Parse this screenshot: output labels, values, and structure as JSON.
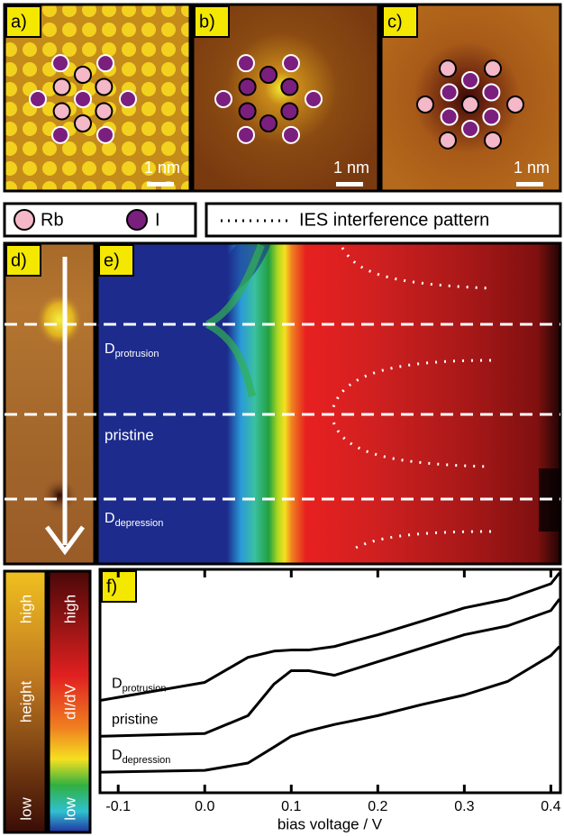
{
  "panels": {
    "a": {
      "label": "a)",
      "scale": "1 nm"
    },
    "b": {
      "label": "b)",
      "scale": "1 nm"
    },
    "c": {
      "label": "c)",
      "scale": "1 nm"
    },
    "d": {
      "label": "d)"
    },
    "e": {
      "label": "e)",
      "labels": [
        {
          "text": "D",
          "sub": "protrusion"
        },
        {
          "text": "pristine"
        },
        {
          "text": "D",
          "sub": "depression"
        }
      ]
    }
  },
  "legend": {
    "rb": "Rb",
    "i": "I",
    "ies": "IES interference pattern"
  },
  "colorbars": {
    "height": {
      "high": "high",
      "title": "height",
      "low": "low"
    },
    "didv": {
      "high": "high",
      "title": "dI/dV",
      "low": "low"
    }
  },
  "chart_data": {
    "type": "line",
    "label": "f)",
    "xlabel": "bias voltage / V",
    "x": [
      -0.12,
      0,
      0.05,
      0.08,
      0.1,
      0.12,
      0.15,
      0.2,
      0.25,
      0.3,
      0.35,
      0.4,
      0.41
    ],
    "xlim": [
      -0.12,
      0.41
    ],
    "xticks": [
      -0.1,
      {
        "value": 0,
        "label": "0.0"
      },
      0.1,
      0.2,
      0.3,
      0.4
    ],
    "ylim": [
      0,
      100
    ],
    "series": [
      {
        "name": "D",
        "subscript": "protrusion",
        "color": "#000000",
        "values": [
          41.3,
          49.4,
          60.7,
          63.5,
          64,
          64,
          65.6,
          70.9,
          76.9,
          83,
          87,
          93.9,
          98.8
        ]
      },
      {
        "name": "pristine",
        "color": "#000000",
        "values": [
          25.1,
          26.3,
          34.4,
          48.6,
          54.7,
          54.7,
          52.6,
          58.7,
          64.8,
          70.9,
          74.9,
          81.8,
          87
        ]
      },
      {
        "name": "D",
        "subscript": "depression",
        "color": "#000000",
        "values": [
          8.9,
          9.7,
          13,
          20.2,
          25.1,
          27.5,
          30.4,
          34.4,
          39.3,
          43.7,
          49.8,
          61.5,
          65.6
        ]
      }
    ]
  }
}
